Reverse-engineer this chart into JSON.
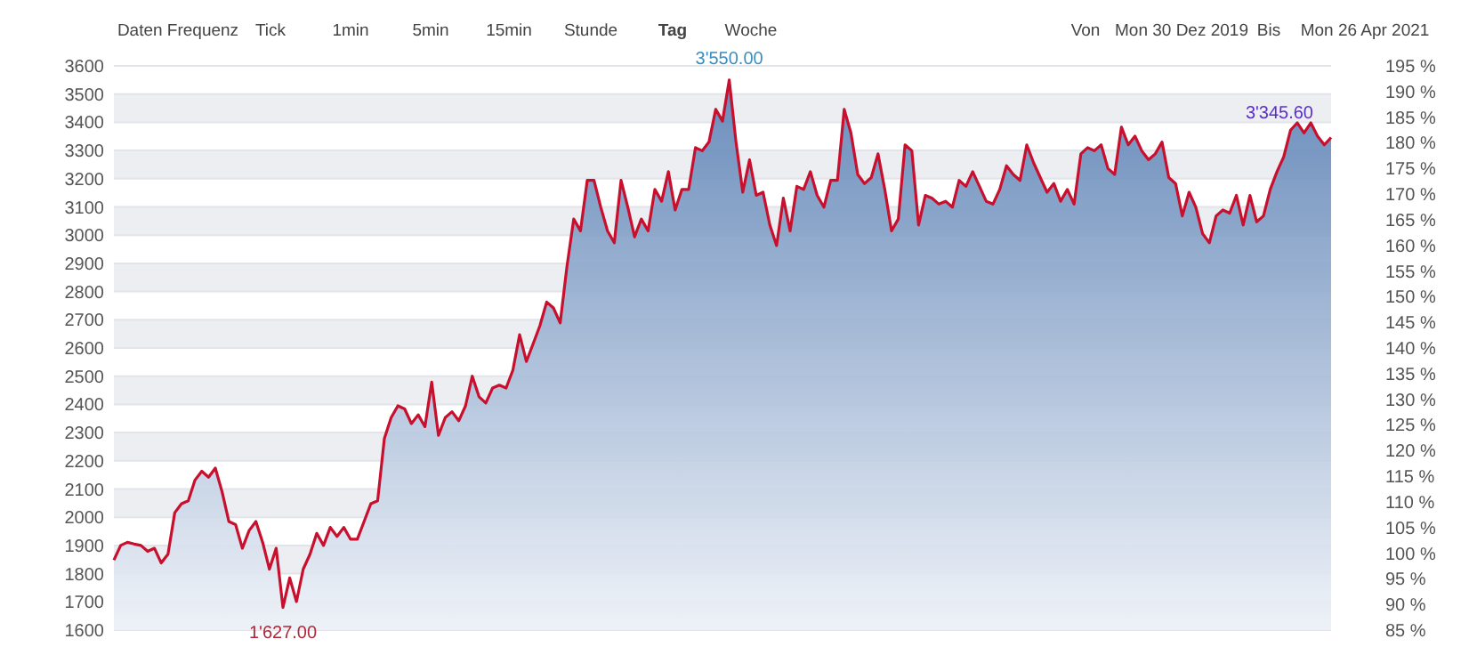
{
  "chart_data": {
    "type": "area",
    "categories": [
      null,
      null,
      null,
      null,
      null,
      null,
      null,
      null,
      null,
      null,
      null,
      null,
      null,
      null,
      null,
      null,
      null,
      null,
      null,
      null,
      null,
      null,
      null,
      null,
      null,
      null,
      null,
      null,
      null,
      null,
      null,
      null,
      null,
      null,
      null,
      null,
      null,
      null,
      null,
      null,
      null,
      null,
      null,
      null,
      null,
      null,
      null,
      null,
      null,
      null,
      null,
      null,
      null,
      null,
      null,
      null,
      null,
      null,
      null,
      null,
      null,
      null,
      null,
      null,
      null,
      null,
      null,
      null,
      null,
      null,
      null,
      null,
      null,
      null,
      null,
      null,
      null,
      null,
      null,
      null,
      null,
      null,
      null,
      null,
      null,
      null,
      null,
      null,
      null,
      null,
      null,
      null,
      null,
      null,
      null,
      null,
      null,
      null,
      null,
      null,
      null,
      null,
      null,
      null,
      null,
      null,
      null,
      null,
      null,
      null,
      null,
      null,
      null,
      null,
      null,
      null,
      null,
      null,
      null,
      null,
      null,
      null,
      null,
      null,
      null,
      null,
      null,
      null,
      null,
      null,
      null,
      null,
      null,
      null,
      null,
      null,
      null,
      null,
      null,
      null,
      null,
      null,
      null,
      null,
      null,
      null,
      null,
      null,
      null,
      null,
      null,
      null,
      null,
      null,
      null,
      null,
      null,
      null,
      null,
      null,
      null,
      null,
      null,
      null,
      null,
      null,
      null,
      null,
      null,
      null,
      null,
      null,
      null,
      null,
      null,
      null,
      null,
      null,
      null,
      null,
      null
    ],
    "series": [
      {
        "color": "#c8102e",
        "values": [
          1848,
          1900,
          1911,
          1905,
          1900,
          1879,
          1890,
          1838,
          1869,
          2016,
          2048,
          2058,
          2132,
          2163,
          2142,
          2174,
          2090,
          1985,
          1974,
          1890,
          1953,
          1985,
          1911,
          1816,
          1890,
          1680,
          1785,
          1701,
          1816,
          1869,
          1943,
          1900,
          1964,
          1932,
          1964,
          1922,
          1922,
          1985,
          2048,
          2058,
          2279,
          2353,
          2395,
          2384,
          2332,
          2363,
          2321,
          2479,
          2290,
          2353,
          2374,
          2342,
          2395,
          2500,
          2427,
          2405,
          2458,
          2468,
          2458,
          2521,
          2647,
          2552,
          2615,
          2679,
          2763,
          2742,
          2689,
          2889,
          3057,
          3015,
          3194,
          3194,
          3099,
          3015,
          2973,
          3194,
          3099,
          2994,
          3057,
          3015,
          3162,
          3120,
          3225,
          3089,
          3162,
          3162,
          3310,
          3299,
          3330,
          3446,
          3404,
          3550,
          3330,
          3152,
          3267,
          3141,
          3152,
          3036,
          2963,
          3131,
          3015,
          3173,
          3162,
          3225,
          3141,
          3099,
          3194,
          3194,
          3446,
          3362,
          3215,
          3183,
          3204,
          3288,
          3162,
          3015,
          3057,
          3320,
          3299,
          3036,
          3141,
          3131,
          3110,
          3120,
          3099,
          3194,
          3173,
          3225,
          3173,
          3120,
          3110,
          3162,
          3246,
          3215,
          3194,
          3320,
          3257,
          3204,
          3152,
          3183,
          3120,
          3162,
          3110,
          3288,
          3310,
          3299,
          3320,
          3236,
          3215,
          3383,
          3320,
          3351,
          3299,
          3267,
          3288,
          3330,
          3204,
          3183,
          3068,
          3152,
          3099,
          3005,
          2973,
          3068,
          3089,
          3078,
          3141,
          3036,
          3141,
          3047,
          3068,
          3162,
          3225,
          3278,
          3372,
          3398,
          3362,
          3398,
          3351,
          3320,
          3346
        ]
      }
    ],
    "ylim": [
      1600,
      3600
    ],
    "yticks": [
      1600,
      1700,
      1800,
      1900,
      2000,
      2100,
      2200,
      2300,
      2400,
      2500,
      2600,
      2700,
      2800,
      2900,
      3000,
      3100,
      3200,
      3300,
      3400,
      3500,
      3600
    ],
    "y2lim": [
      85,
      195
    ],
    "y2ticks": [
      {
        "value": 85,
        "label": "85 %"
      },
      {
        "value": 90,
        "label": "90 %"
      },
      {
        "value": 95,
        "label": "95 %"
      },
      {
        "value": 100,
        "label": "100 %"
      },
      {
        "value": 105,
        "label": "105 %"
      },
      {
        "value": 110,
        "label": "110 %"
      },
      {
        "value": 115,
        "label": "115 %"
      },
      {
        "value": 120,
        "label": "120 %"
      },
      {
        "value": 125,
        "label": "125 %"
      },
      {
        "value": 130,
        "label": "130 %"
      },
      {
        "value": 135,
        "label": "135 %"
      },
      {
        "value": 140,
        "label": "140 %"
      },
      {
        "value": 145,
        "label": "145 %"
      },
      {
        "value": 150,
        "label": "150 %"
      },
      {
        "value": 155,
        "label": "155 %"
      },
      {
        "value": 160,
        "label": "160 %"
      },
      {
        "value": 165,
        "label": "165 %"
      },
      {
        "value": 170,
        "label": "170 %"
      },
      {
        "value": 175,
        "label": "175 %"
      },
      {
        "value": 180,
        "label": "180 %"
      },
      {
        "value": 185,
        "label": "185 %"
      },
      {
        "value": 190,
        "label": "190 %"
      },
      {
        "value": 195,
        "label": "195 %"
      }
    ],
    "tick_labels": "y",
    "grid": "y",
    "marker": "none",
    "line_style": "solid",
    "annotations": [
      "Daten Frequenz",
      "Tick",
      "1min",
      "5min",
      "15min",
      "Stunde",
      "Tag",
      "Woche",
      "Von",
      "Mon 30 Dez 2019",
      "Bis",
      "Mon 26 Apr 2021",
      {
        "text": "3'550.00",
        "y": 3550
      },
      "1'627.00",
      "3'345.60"
    ]
  }
}
